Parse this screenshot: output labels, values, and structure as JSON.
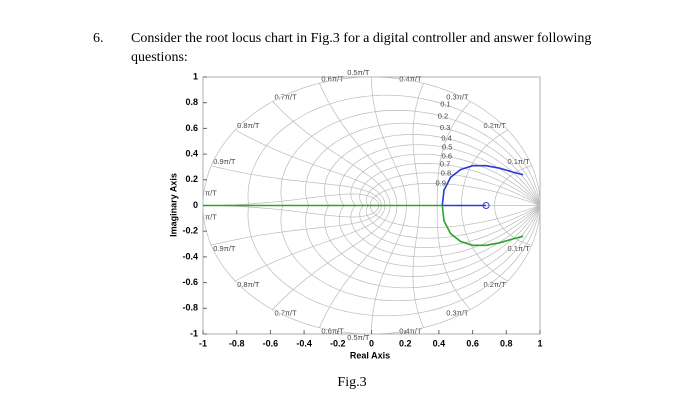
{
  "question": {
    "number": "6.",
    "lines": [
      "Consider the root locus chart in Fig.3 for a digital controller and answer following",
      "questions:"
    ]
  },
  "figure_caption": "Fig.3",
  "chart_data": {
    "type": "line",
    "x_label": "Real Axis",
    "y_label": "Imaginary Axis",
    "xlim": [
      -1,
      1
    ],
    "ylim": [
      -1,
      1
    ],
    "xticks": [
      -1,
      -0.8,
      -0.6,
      -0.4,
      -0.2,
      0,
      0.2,
      0.4,
      0.6,
      0.8,
      1
    ],
    "yticks": [
      -1,
      -0.8,
      -0.6,
      -0.4,
      -0.2,
      0,
      0.2,
      0.4,
      0.6,
      0.8,
      1
    ],
    "zeta_grid": [
      0.1,
      0.2,
      0.3,
      0.4,
      0.5,
      0.6,
      0.7,
      0.8,
      0.9
    ],
    "wn_grid": [
      {
        "value": 0.1,
        "label": "0.1π/T"
      },
      {
        "value": 0.2,
        "label": "0.2π/T"
      },
      {
        "value": 0.3,
        "label": "0.3π/T"
      },
      {
        "value": 0.4,
        "label": "0.4π/T"
      },
      {
        "value": 0.5,
        "label": "0.5π/T"
      },
      {
        "value": 0.6,
        "label": "0.6π/T"
      },
      {
        "value": 0.7,
        "label": "0.7π/T"
      },
      {
        "value": 0.8,
        "label": "0.8π/T"
      },
      {
        "value": 0.9,
        "label": "0.9π/T"
      },
      {
        "value": 1,
        "label": "π/T"
      }
    ],
    "series": [
      {
        "color": "#2a3bd6",
        "x": [
          0.42,
          0.43,
          0.47,
          0.53,
          0.6,
          0.68,
          0.76,
          0.84,
          0.9
        ],
        "values": [
          0,
          0.12,
          0.22,
          0.28,
          0.31,
          0.31,
          0.29,
          0.26,
          0.24
        ]
      },
      {
        "color": "#2a3bd6",
        "x": [
          0.42,
          0.68
        ],
        "values": [
          0,
          0
        ]
      },
      {
        "color": "#2aa52a",
        "x": [
          -1,
          0.42
        ],
        "values": [
          0,
          0
        ]
      },
      {
        "color": "#2aa52a",
        "x": [
          0.42,
          0.43,
          0.47,
          0.53,
          0.6,
          0.68,
          0.76,
          0.84,
          0.9
        ],
        "values": [
          0,
          -0.12,
          -0.22,
          -0.28,
          -0.31,
          -0.31,
          -0.29,
          -0.26,
          -0.24
        ]
      }
    ],
    "zeros": {
      "color": "#2a3bd6",
      "x": [
        0.68
      ],
      "values": [
        0
      ]
    }
  }
}
